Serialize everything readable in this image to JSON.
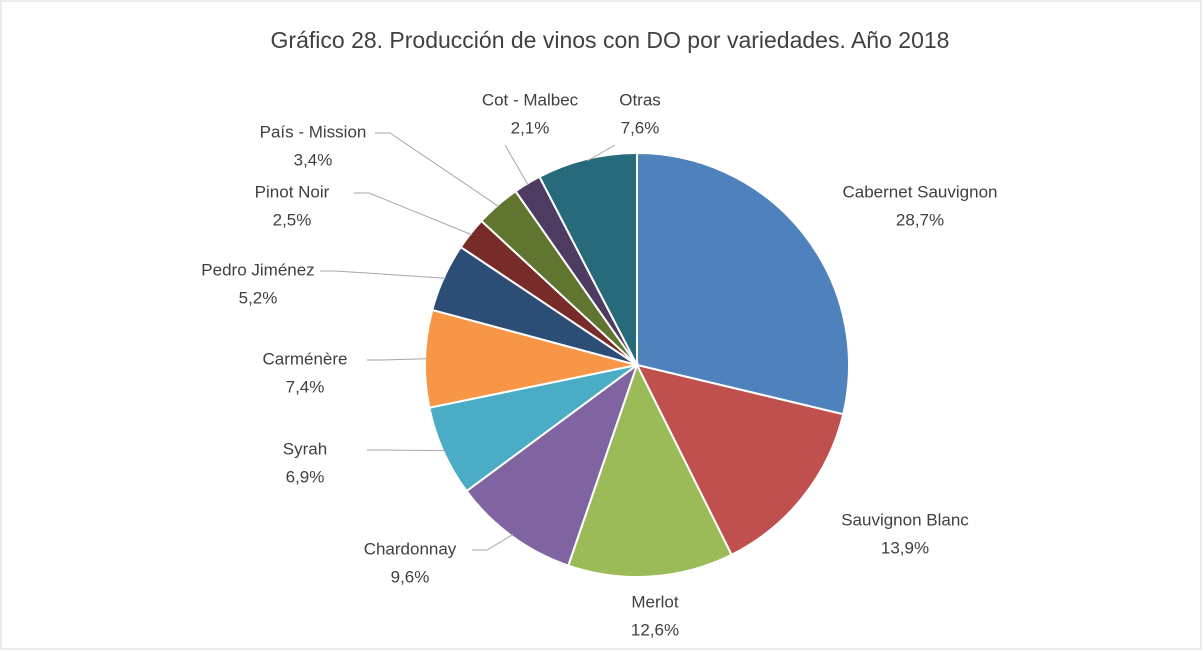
{
  "chart_data": {
    "type": "pie",
    "title": "Gráfico 28. Producción de vinos con DO por variedades. Año 2018",
    "categories": [
      "Cabernet Sauvignon",
      "Sauvignon Blanc",
      "Merlot",
      "Chardonnay",
      "Syrah",
      "Carménère",
      "Pedro Jiménez",
      "Pinot Noir",
      "País - Mission",
      "Cot - Malbec",
      "Otras"
    ],
    "values": [
      28.7,
      13.9,
      12.6,
      9.6,
      6.9,
      7.4,
      5.2,
      2.5,
      3.4,
      2.1,
      7.6
    ],
    "value_labels": [
      "28,7%",
      "13,9%",
      "12,6%",
      "9,6%",
      "6,9%",
      "7,4%",
      "5,2%",
      "2,5%",
      "3,4%",
      "2,1%",
      "7,6%"
    ],
    "colors": [
      "#4f81bd",
      "#c0504d",
      "#9bbb59",
      "#8064a2",
      "#4bacc6",
      "#f79646",
      "#2c4d75",
      "#772c2a",
      "#5f7530",
      "#4d3b62",
      "#276a7c"
    ]
  }
}
